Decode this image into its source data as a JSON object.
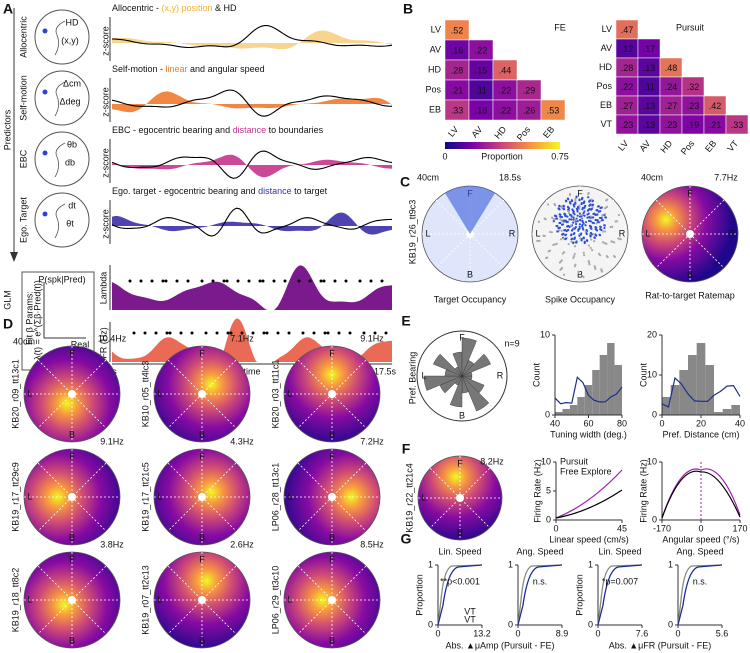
{
  "directions": [
    "F",
    "R",
    "B",
    "L"
  ],
  "panel_a": {
    "letter": "A",
    "predictors": "Predictors",
    "glm": "GLM",
    "rows": [
      {
        "name": "Allocentric",
        "title": [
          "Allocentric - ",
          "(x,y) position",
          " & HD"
        ],
        "axis": "z-score",
        "icon": [
          "HD",
          "(x,y)"
        ]
      },
      {
        "name": "Self-motion",
        "title": [
          "Self-motion - ",
          "linear",
          " and angular speed"
        ],
        "axis": "z-score",
        "icon": [
          "Δcm",
          "Δdeg"
        ]
      },
      {
        "name": "EBC",
        "title": [
          "EBC - egocentric bearing and ",
          "distance",
          " to boundaries"
        ],
        "axis": "z-score",
        "icon": [
          "θb",
          "db"
        ]
      },
      {
        "name": "Ego. Target",
        "title": [
          "Ego. target - egocentric bearing and ",
          "distance",
          " to target"
        ],
        "axis": "z-score",
        "icon": [
          "dt",
          "θt"
        ]
      }
    ],
    "lambda": "Lambda",
    "fr": "FR (Hz)",
    "t0": "0s",
    "t_label": "time",
    "t1": "17.5s",
    "glm_box": {
      "y": "P(spk|Pred)",
      "x": "Real",
      "fit": "Fit β Params:",
      "formula": "λ(t) = e^(Σβ·Pred(t))"
    }
  },
  "panel_b": {
    "letter": "B",
    "colorbar": {
      "ticks": [
        0,
        0.75
      ],
      "label": "Proportion"
    },
    "matrices": [
      {
        "title": "FE",
        "labels": [
          "LV",
          "AV",
          "HD",
          "Pos",
          "EB"
        ],
        "rows": [
          [
            ".52"
          ],
          [
            ".16",
            ".22"
          ],
          [
            ".28",
            ".15",
            ".44"
          ],
          [
            ".21",
            ".11",
            ".22",
            ".29"
          ],
          [
            ".33",
            ".18",
            ".22",
            ".26",
            ".53"
          ]
        ]
      },
      {
        "title": "Pursuit",
        "labels": [
          "LV",
          "AV",
          "HD",
          "Pos",
          "EB",
          "VT"
        ],
        "rows": [
          [
            ".47"
          ],
          [
            ".12",
            ".17"
          ],
          [
            ".28",
            ".13",
            ".48"
          ],
          [
            ".22",
            ".11",
            ".24",
            ".32"
          ],
          [
            ".27",
            ".13",
            ".27",
            ".23",
            ".42"
          ],
          [
            ".23",
            ".13",
            ".23",
            ".19",
            ".21",
            ".33"
          ]
        ]
      }
    ]
  },
  "panel_c": {
    "letter": "C",
    "cell": "KB19_r26_tt9c3",
    "scale": "40cm",
    "time": "18.5s",
    "scale2": "40cm",
    "rate": "7.7Hz",
    "captions": [
      "Target Occupancy",
      "Spike Occupancy",
      "Rat-to-target Ratemap"
    ]
  },
  "panel_d": {
    "letter": "D",
    "scale": "40cm",
    "cells": [
      {
        "rate": "10.4Hz",
        "id": "KB20_r09_tt13c1"
      },
      {
        "rate": "7.1Hz",
        "id": "KB10_r05_tt4lc3"
      },
      {
        "rate": "9.1Hz",
        "id": "KB20_r03_tt11c1"
      },
      {
        "rate": "9.1Hz",
        "id": "KB19_r17_tt29c9"
      },
      {
        "rate": "4.3Hz",
        "id": "KB19_r17_tt21c5"
      },
      {
        "rate": "7.2Hz",
        "id": "LP06_r28_tt13c1"
      },
      {
        "rate": "3.8Hz",
        "id": "KB19_r18_tt8c2"
      },
      {
        "rate": "2.6Hz",
        "id": "KB19_r07_tt2c13"
      },
      {
        "rate": "8.5Hz",
        "id": "LP06_r29_tt3c10"
      }
    ]
  },
  "panel_e": {
    "letter": "E",
    "polar_label": "Pref. Bearing",
    "n": "n=9",
    "hists": [
      {
        "ylabel": "Count",
        "xlabel": "Tuning width (deg.)",
        "xticks": [
          40,
          60,
          80
        ],
        "yticks": [
          0,
          10
        ]
      },
      {
        "ylabel": "Count",
        "xlabel": "Pref. Distance (cm)",
        "xticks": [
          0,
          20,
          40
        ],
        "yticks": [
          0,
          10,
          20
        ]
      }
    ]
  },
  "panel_f": {
    "letter": "F",
    "id": "KB19_r22_tt21c4",
    "rate": "8.2Hz",
    "legend": [
      "Pursuit",
      "Free Explore"
    ],
    "plots": [
      {
        "ylabel": "Firing Rate (Hz)",
        "xlabel": "Linear speed (cm/s)",
        "xticks": [
          0,
          45
        ],
        "yticks": [
          0,
          5,
          10
        ]
      },
      {
        "ylabel": "Firing Rate (Hz)",
        "xlabel": "Angular speed (°/s)",
        "xticks": [
          -170,
          0,
          170
        ],
        "yticks": [
          0,
          10
        ]
      }
    ]
  },
  "panel_g": {
    "letter": "G",
    "ylabel": "Proportion",
    "yticks": [
      0,
      1
    ],
    "legend": [
      "VT",
      "VT"
    ],
    "groups": [
      {
        "xlabel": "Abs. ▲μAmp (Pursuit - FE)",
        "plots": [
          {
            "title": "Lin. Speed",
            "stat": "**p<0.001",
            "xticks": [
              0,
              13.2
            ]
          },
          {
            "title": "Ang. Speed",
            "stat": "n.s.",
            "xticks": [
              0,
              8.9
            ]
          }
        ]
      },
      {
        "xlabel": "Abs. ▲μFR (Pursuit - FE)",
        "plots": [
          {
            "title": "Lin. Speed",
            "stat": "*p=0.007",
            "xticks": [
              0,
              7.6
            ]
          },
          {
            "title": "Ang. Speed",
            "stat": "n.s.",
            "xticks": [
              0,
              5.6
            ]
          }
        ]
      }
    ]
  }
}
